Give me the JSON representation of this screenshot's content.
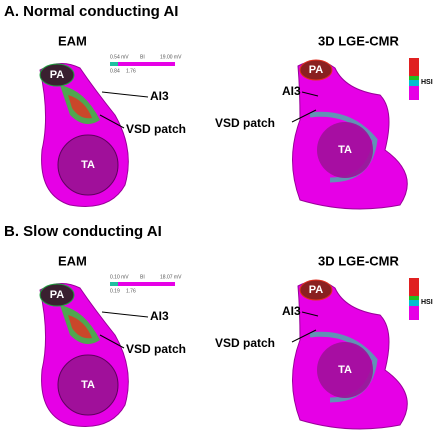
{
  "panels": [
    {
      "title": "A. Normal conducting AI",
      "eam": {
        "title": "EAM",
        "pa": "PA",
        "ta": "TA",
        "ai": "AI3",
        "vsd": "VSD patch",
        "scale": {
          "min": "0.54 mV",
          "mid": "BI",
          "max": "19.00 mV",
          "low": "0.84",
          "high": "1.76"
        }
      },
      "cmr": {
        "title": "3D LGE-CMR",
        "pa": "PA",
        "ta": "TA",
        "ai": "AI3",
        "vsd": "VSD patch",
        "legend": "HSI"
      }
    },
    {
      "title": "B. Slow conducting AI",
      "eam": {
        "title": "EAM",
        "pa": "PA",
        "ta": "TA",
        "ai": "AI3",
        "vsd": "VSD patch",
        "scale": {
          "min": "0.10 mV",
          "mid": "BI",
          "max": "18.07 mV",
          "low": "0.19",
          "high": "1.76"
        }
      },
      "cmr": {
        "title": "3D LGE-CMR",
        "pa": "PA",
        "ta": "TA",
        "ai": "AI3",
        "vsd": "VSD patch",
        "legend": "HSI"
      }
    }
  ]
}
